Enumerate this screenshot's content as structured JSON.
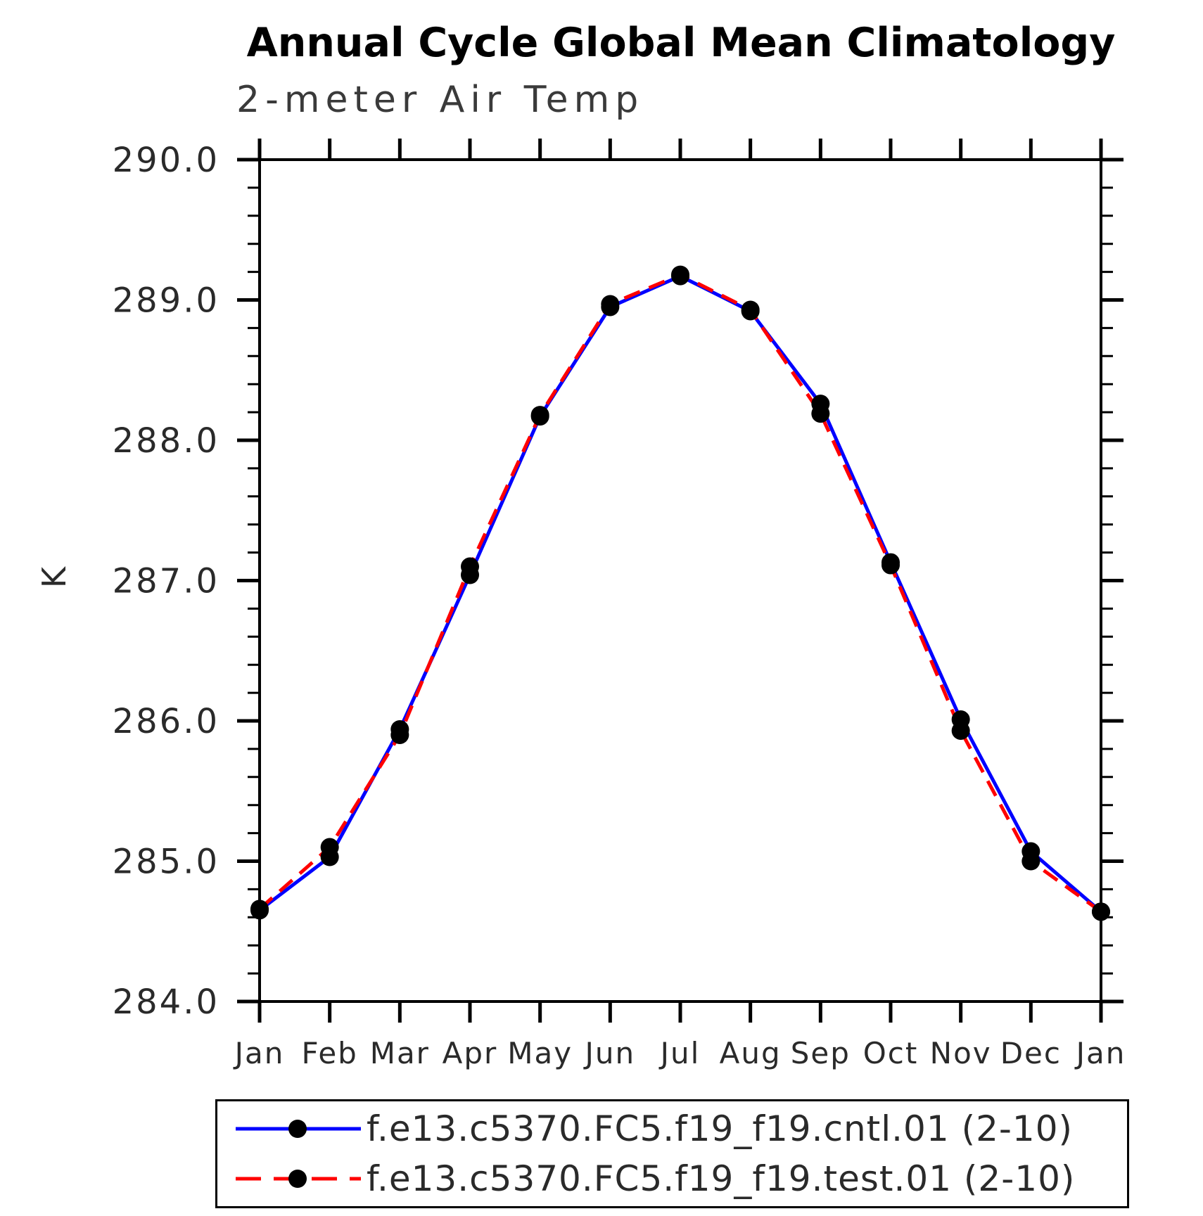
{
  "title": "Annual Cycle Global Mean Climatology",
  "subtitle": "2-meter Air Temp",
  "chart_data": {
    "type": "line",
    "title": "Annual Cycle Global Mean Climatology",
    "subtitle": "2-meter Air Temp",
    "xlabel": "",
    "ylabel": "K",
    "x_categories": [
      "Jan",
      "Feb",
      "Mar",
      "Apr",
      "May",
      "Jun",
      "Jul",
      "Aug",
      "Sep",
      "Oct",
      "Nov",
      "Dec",
      "Jan"
    ],
    "ylim": [
      284.0,
      290.0
    ],
    "y_major_tick_step": 1.0,
    "y_minor_tick_step": 0.2,
    "y_tick_labels": [
      "284.0",
      "285.0",
      "286.0",
      "287.0",
      "288.0",
      "289.0",
      "290.0"
    ],
    "grid": false,
    "legend_position": "bottom",
    "marker_color": "#000000",
    "axis_color": "#000000",
    "series": [
      {
        "name": "f.e13.c5370.FC5.f19_f19.cntl.01 (2-10)",
        "color": "#0000ff",
        "line_style": "solid",
        "marker": "filled-circle",
        "values": [
          284.65,
          285.03,
          285.94,
          287.04,
          288.17,
          288.95,
          289.17,
          288.92,
          288.26,
          287.13,
          286.01,
          285.07,
          284.64
        ]
      },
      {
        "name": "f.e13.c5370.FC5.f19_f19.test.01 (2-10)",
        "color": "#ff0000",
        "line_style": "dashed",
        "marker": "filled-circle",
        "values": [
          284.66,
          285.1,
          285.9,
          287.1,
          288.18,
          288.97,
          289.18,
          288.93,
          288.19,
          287.11,
          285.93,
          285.0,
          284.64
        ]
      }
    ]
  }
}
